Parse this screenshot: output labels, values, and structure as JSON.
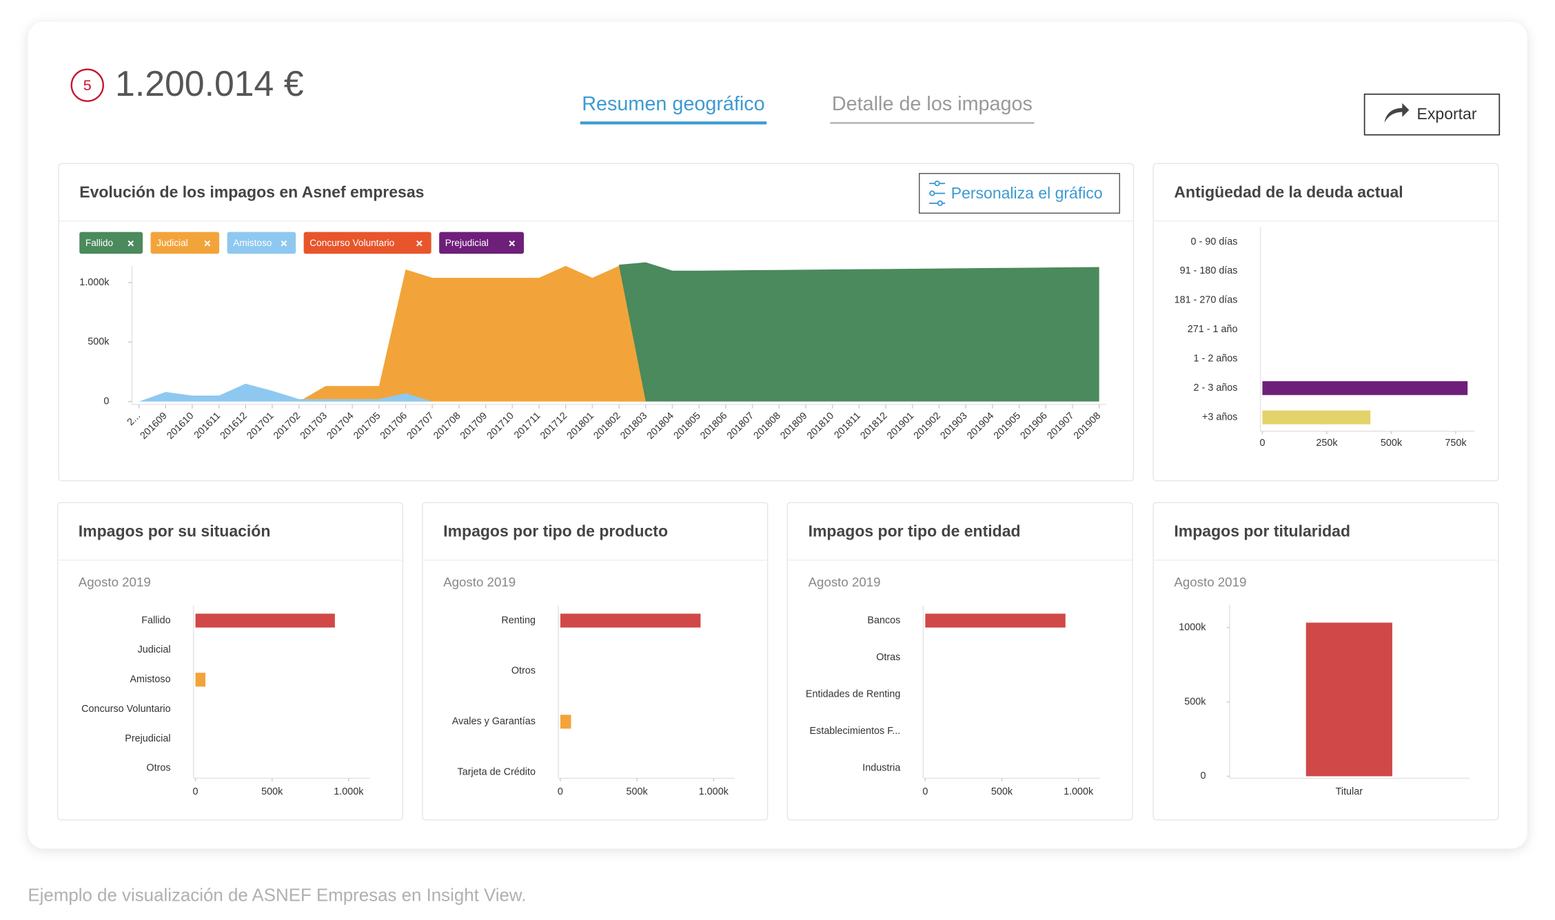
{
  "header": {
    "badge": "5",
    "amount": "1.200.014 €",
    "tabs": [
      "Resumen geográfico",
      "Detalle de los impagos"
    ],
    "export": "Exportar"
  },
  "caption": "Ejemplo de visualización de ASNEF Empresas en Insight View.",
  "chart_data": [
    {
      "type": "area",
      "title": "Evolución de los impagos en Asnef empresas",
      "button": "Personaliza el gráfico",
      "categories": [
        "2...",
        "201609",
        "201610",
        "201611",
        "201612",
        "201701",
        "201702",
        "201703",
        "201704",
        "201705",
        "201706",
        "201707",
        "201708",
        "201709",
        "201710",
        "201711",
        "201712",
        "201801",
        "201802",
        "201803",
        "201804",
        "201805",
        "201806",
        "201807",
        "201808",
        "201809",
        "201810",
        "201811",
        "201812",
        "201901",
        "201902",
        "201903",
        "201904",
        "201905",
        "201906",
        "201907",
        "201908"
      ],
      "series": [
        {
          "name": "Fallido",
          "color": "#4a8a5c",
          "values": [
            null,
            null,
            null,
            null,
            null,
            null,
            null,
            null,
            null,
            null,
            null,
            null,
            null,
            null,
            null,
            null,
            null,
            null,
            1150,
            1170,
            1100,
            1100,
            1102,
            1104,
            1106,
            1108,
            1110,
            1112,
            1114,
            1116,
            1118,
            1120,
            1122,
            1124,
            1126,
            1128,
            1130
          ]
        },
        {
          "name": "Judicial",
          "color": "#f2a43a",
          "values": [
            null,
            null,
            null,
            null,
            null,
            null,
            0,
            130,
            130,
            130,
            1110,
            1040,
            1040,
            1040,
            1040,
            1040,
            1140,
            1040,
            1140,
            0,
            null,
            null,
            null,
            null,
            null,
            null,
            null,
            null,
            null,
            null,
            null,
            null,
            null,
            null,
            null,
            null,
            null
          ]
        },
        {
          "name": "Amistoso",
          "color": "#8ec8f0",
          "values": [
            0,
            80,
            50,
            50,
            150,
            90,
            20,
            20,
            20,
            20,
            70,
            0,
            null,
            null,
            null,
            null,
            null,
            null,
            null,
            null,
            null,
            null,
            null,
            null,
            null,
            null,
            null,
            null,
            null,
            null,
            null,
            null,
            null,
            null,
            null,
            null,
            null
          ]
        },
        {
          "name": "Concurso Voluntario",
          "color": "#e8552b",
          "values": [
            null,
            null,
            null,
            null,
            null,
            null,
            null,
            null,
            null,
            null,
            null,
            null,
            null,
            null,
            null,
            null,
            null,
            null,
            null,
            null,
            null,
            null,
            null,
            null,
            null,
            null,
            null,
            null,
            null,
            null,
            null,
            null,
            null,
            null,
            null,
            null,
            null
          ]
        },
        {
          "name": "Prejudicial",
          "color": "#6e1f7a",
          "values": [
            null,
            null,
            null,
            null,
            null,
            null,
            null,
            null,
            null,
            null,
            null,
            null,
            null,
            null,
            null,
            null,
            null,
            null,
            null,
            null,
            null,
            null,
            null,
            null,
            null,
            null,
            null,
            null,
            null,
            null,
            null,
            null,
            null,
            null,
            null,
            null,
            null
          ]
        }
      ],
      "ylim": [
        0,
        1150
      ],
      "yticks": [
        0,
        {
          "value": 500,
          "label": "500k"
        },
        {
          "value": 1000,
          "label": "1.000k"
        }
      ]
    },
    {
      "type": "hbar",
      "title": "Antigüedad de la deuda actual",
      "categories": [
        "0 - 90 días",
        "91 - 180 días",
        "181 - 270 días",
        "271 - 1 año",
        "1 - 2 años",
        "2 - 3 años",
        "+3 años"
      ],
      "values": [
        0,
        0,
        0,
        0,
        0,
        796,
        419
      ],
      "colors": [
        null,
        null,
        null,
        null,
        null,
        "#6e1f7a",
        "#e2d36b"
      ],
      "xlim": [
        0,
        800
      ],
      "xticks": [
        0,
        {
          "value": 250,
          "label": "250k"
        },
        {
          "value": 500,
          "label": "500k"
        },
        {
          "value": 750,
          "label": "750k"
        }
      ]
    },
    {
      "type": "hbar",
      "title": "Impagos por su situación",
      "subtitle": "Agosto 2019",
      "categories": [
        "Fallido",
        "Judicial",
        "Amistoso",
        "Concurso Voluntario",
        "Prejudicial",
        "Otros"
      ],
      "values": [
        910,
        0,
        65,
        0,
        0,
        0
      ],
      "colors": [
        "#d14848",
        null,
        "#f2a43a",
        null,
        null,
        null
      ],
      "xlim": [
        0,
        1100
      ],
      "xticks": [
        0,
        {
          "value": 500,
          "label": "500k"
        },
        {
          "value": 1000,
          "label": "1.000k"
        }
      ]
    },
    {
      "type": "hbar",
      "title": "Impagos por tipo de producto",
      "subtitle": "Agosto 2019",
      "categories": [
        "Renting",
        "Otros",
        "Avales y Garantías",
        "Tarjeta de Crédito"
      ],
      "values": [
        915,
        0,
        70,
        0
      ],
      "colors": [
        "#d14848",
        null,
        "#f2a43a",
        null
      ],
      "xlim": [
        0,
        1100
      ],
      "xticks": [
        0,
        {
          "value": 500,
          "label": "500k"
        },
        {
          "value": 1000,
          "label": "1.000k"
        }
      ]
    },
    {
      "type": "hbar",
      "title": "Impagos por tipo de entidad",
      "subtitle": "Agosto 2019",
      "categories": [
        "Bancos",
        "Otras",
        "Entidades de Renting",
        "Establecimientos F...",
        "Industria"
      ],
      "values": [
        915,
        0,
        0,
        0,
        0
      ],
      "colors": [
        "#d14848",
        null,
        null,
        null,
        null
      ],
      "xlim": [
        0,
        1100
      ],
      "xticks": [
        0,
        {
          "value": 500,
          "label": "500k"
        },
        {
          "value": 1000,
          "label": "1.000k"
        }
      ]
    },
    {
      "type": "bar",
      "title": "Impagos por titularidad",
      "subtitle": "Agosto 2019",
      "categories": [
        "Titular"
      ],
      "values": [
        1033
      ],
      "color": "#d14848",
      "ylim": [
        0,
        1100
      ],
      "yticks": [
        0,
        {
          "value": 500,
          "label": "500k"
        },
        {
          "value": 1000,
          "label": "1000k"
        }
      ]
    }
  ]
}
